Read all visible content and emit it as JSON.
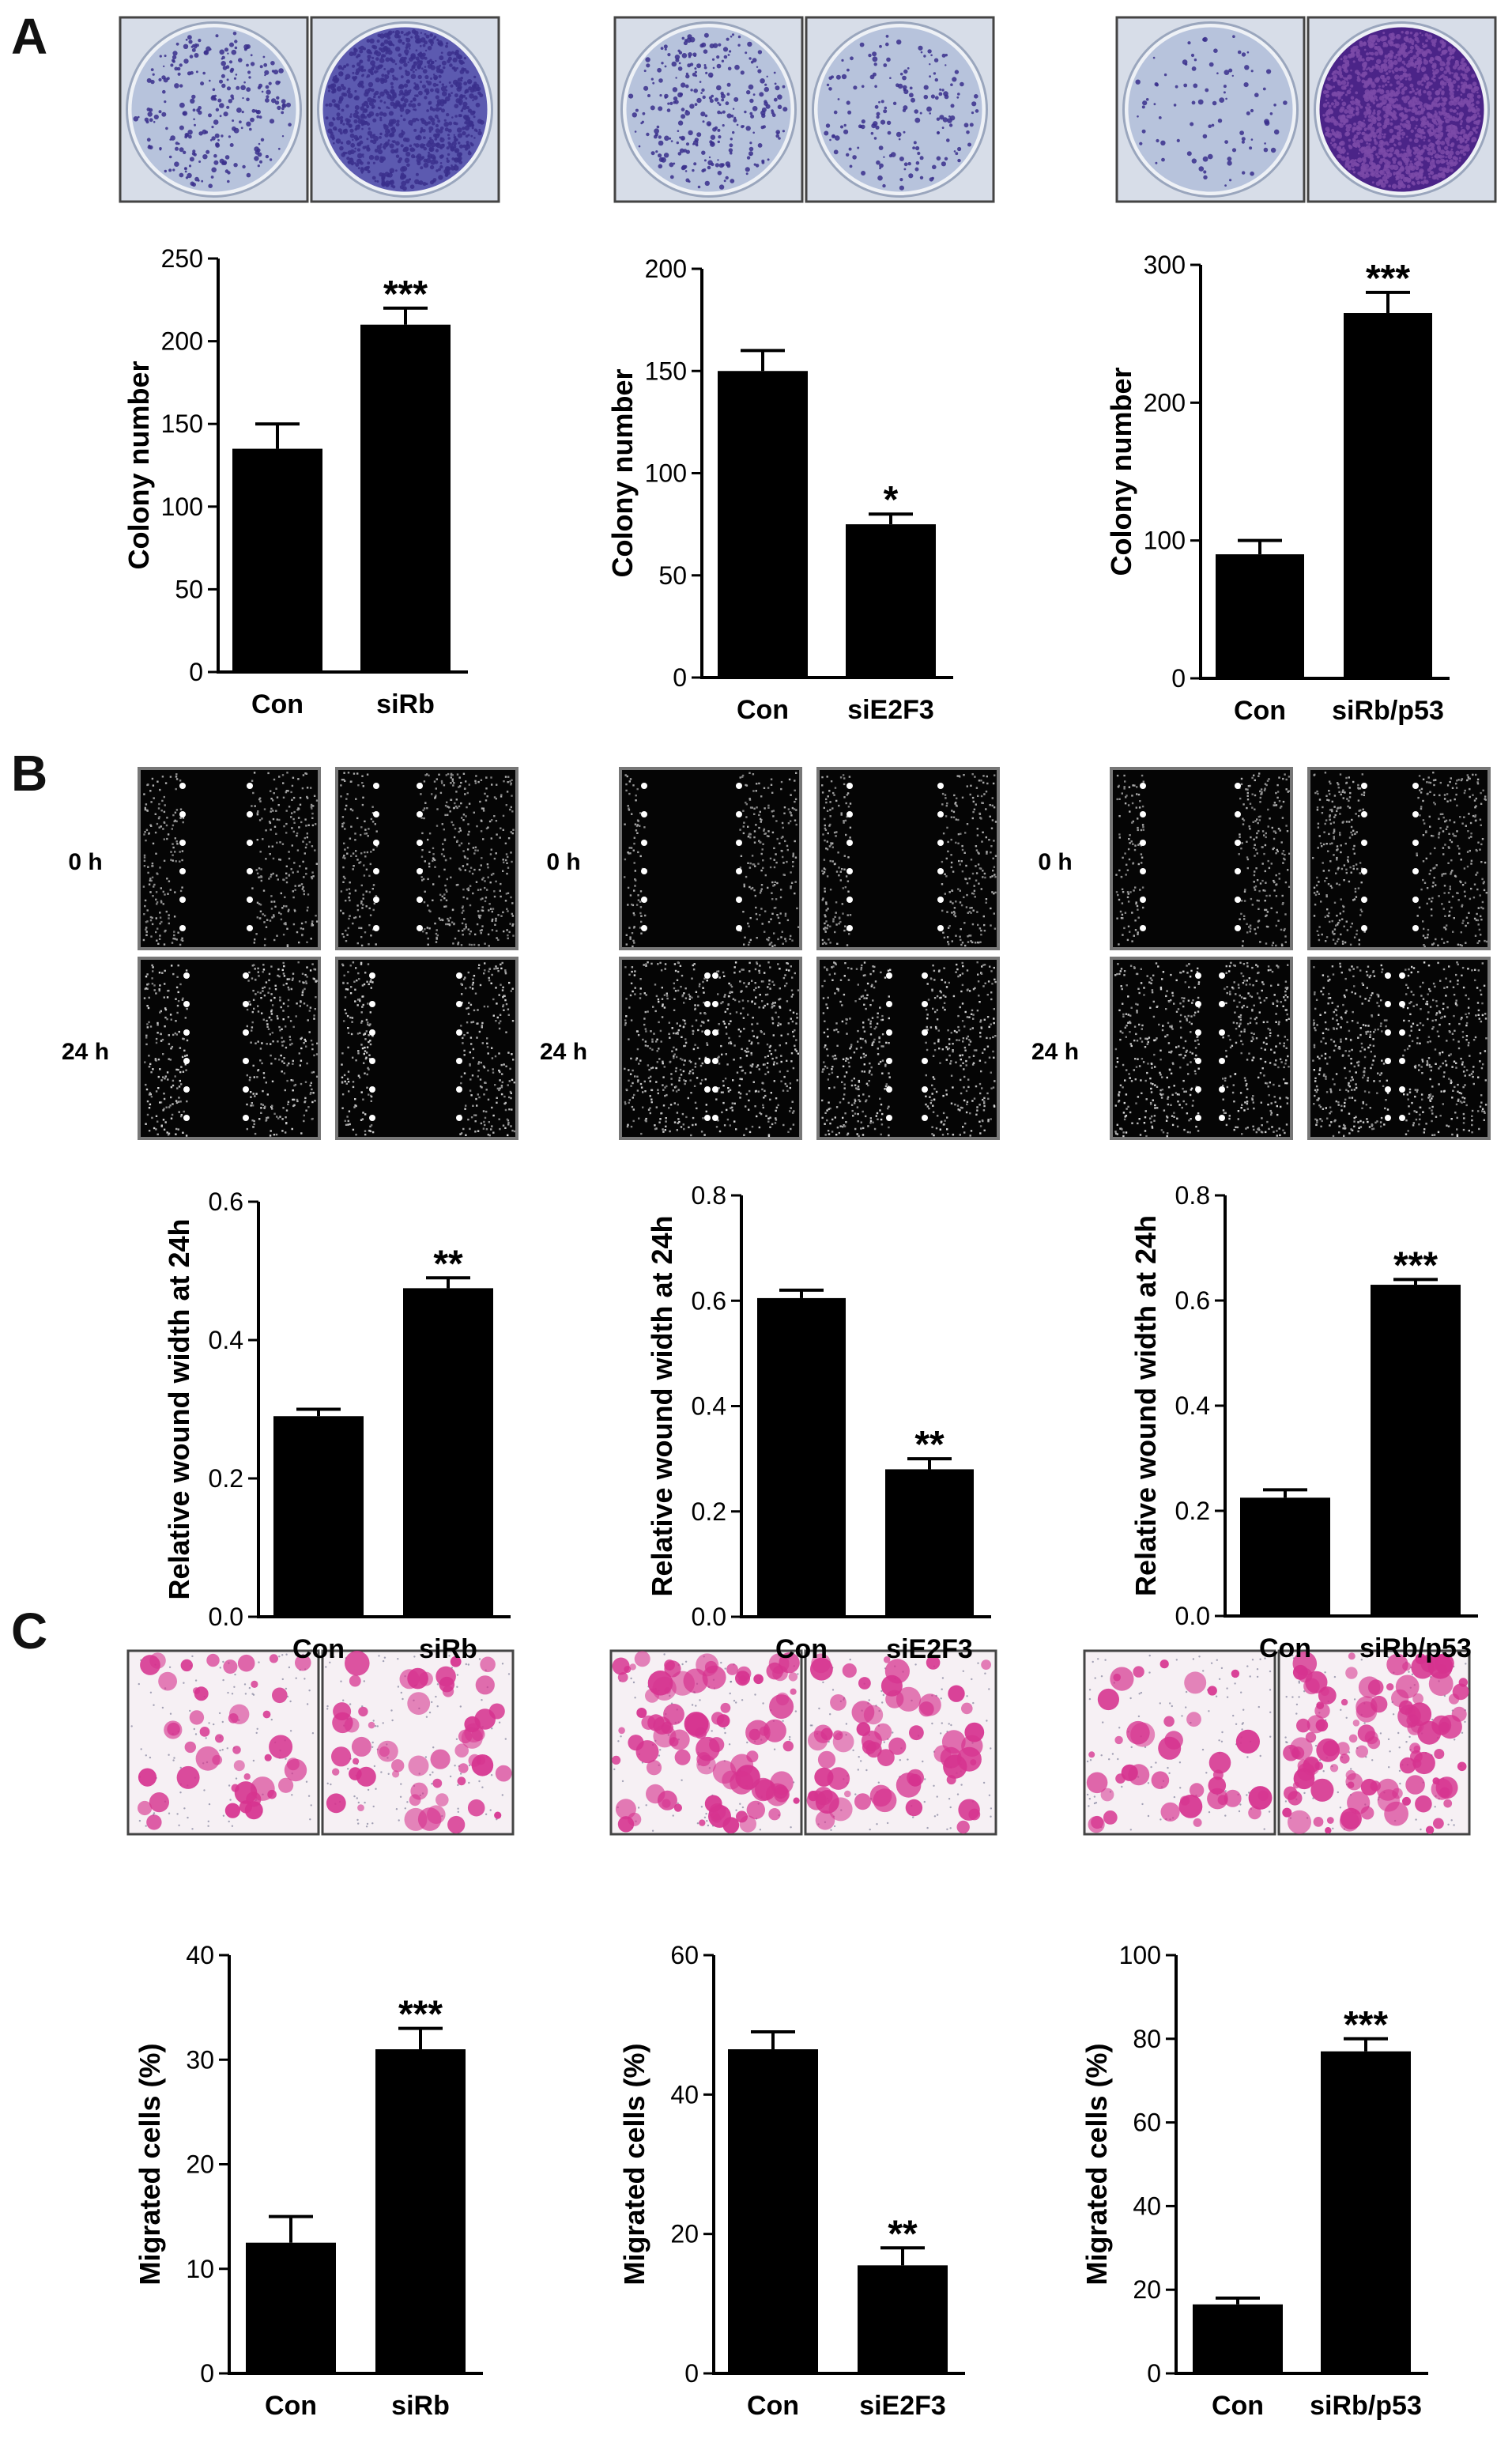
{
  "panel_labels": [
    "A",
    "B",
    "C"
  ],
  "time_labels": [
    "0 h",
    "24 h"
  ],
  "colors": {
    "bar": "#000000",
    "colony_stain": "#3a2f8c",
    "colony_stain_dense": "#4b2488",
    "dish_background": "#b7c3dc",
    "transwell_stain": "#d6338f",
    "scratch_background": "#050505"
  },
  "chart_data": [
    {
      "type": "bar",
      "panel": "A",
      "ylabel": "Colony  number",
      "categories": [
        "Con",
        "siRb"
      ],
      "values": [
        135,
        210
      ],
      "errors": [
        15,
        10
      ],
      "significance": [
        "",
        "***"
      ],
      "ylim": [
        0,
        250
      ],
      "yticks": [
        0,
        50,
        100,
        150,
        200,
        250
      ]
    },
    {
      "type": "bar",
      "panel": "A",
      "ylabel": "Colony number",
      "categories": [
        "Con",
        "siE2F3"
      ],
      "values": [
        150,
        75
      ],
      "errors": [
        10,
        5
      ],
      "significance": [
        "",
        "*"
      ],
      "ylim": [
        0,
        200
      ],
      "yticks": [
        0,
        50,
        100,
        150,
        200
      ]
    },
    {
      "type": "bar",
      "panel": "A",
      "ylabel": "Colony number",
      "categories": [
        "Con",
        "siRb/p53"
      ],
      "values": [
        90,
        265
      ],
      "errors": [
        10,
        15
      ],
      "significance": [
        "",
        "***"
      ],
      "ylim": [
        0,
        300
      ],
      "yticks": [
        0,
        100,
        200,
        300
      ]
    },
    {
      "type": "bar",
      "panel": "B",
      "ylabel": "Relative wound width at 24h",
      "categories": [
        "Con",
        "siRb"
      ],
      "values": [
        0.29,
        0.475
      ],
      "errors": [
        0.01,
        0.015
      ],
      "significance": [
        "",
        "**"
      ],
      "ylim": [
        0,
        0.6
      ],
      "yticks": [
        0.0,
        0.2,
        0.4,
        0.6
      ]
    },
    {
      "type": "bar",
      "panel": "B",
      "ylabel": "Relative wound width at 24h",
      "categories": [
        "Con",
        "siE2F3"
      ],
      "values": [
        0.605,
        0.28
      ],
      "errors": [
        0.015,
        0.02
      ],
      "significance": [
        "",
        "**"
      ],
      "ylim": [
        0,
        0.8
      ],
      "yticks": [
        0.0,
        0.2,
        0.4,
        0.6,
        0.8
      ]
    },
    {
      "type": "bar",
      "panel": "B",
      "ylabel": "Relative wound width at 24h",
      "categories": [
        "Con",
        "siRb/p53"
      ],
      "values": [
        0.225,
        0.63
      ],
      "errors": [
        0.015,
        0.01
      ],
      "significance": [
        "",
        "***"
      ],
      "ylim": [
        0,
        0.8
      ],
      "yticks": [
        0.0,
        0.2,
        0.4,
        0.6,
        0.8
      ]
    },
    {
      "type": "bar",
      "panel": "C",
      "ylabel": "Migrated cells (%)",
      "categories": [
        "Con",
        "siRb"
      ],
      "values": [
        12.5,
        31
      ],
      "errors": [
        2.5,
        2
      ],
      "significance": [
        "",
        "***"
      ],
      "ylim": [
        0,
        40
      ],
      "yticks": [
        0,
        10,
        20,
        30,
        40
      ]
    },
    {
      "type": "bar",
      "panel": "C",
      "ylabel": "Migrated cells (%)",
      "categories": [
        "Con",
        "siE2F3"
      ],
      "values": [
        46.5,
        15.5
      ],
      "errors": [
        2.5,
        2.5
      ],
      "significance": [
        "",
        "**"
      ],
      "ylim": [
        0,
        60
      ],
      "yticks": [
        0,
        20,
        40,
        60
      ]
    },
    {
      "type": "bar",
      "panel": "C",
      "ylabel": "Migrated cells (%)",
      "categories": [
        "Con",
        "siRb/p53"
      ],
      "values": [
        16.5,
        77
      ],
      "errors": [
        1.5,
        3
      ],
      "significance": [
        "",
        "***"
      ],
      "ylim": [
        0,
        100
      ],
      "yticks": [
        0,
        20,
        40,
        60,
        80,
        100
      ]
    }
  ]
}
